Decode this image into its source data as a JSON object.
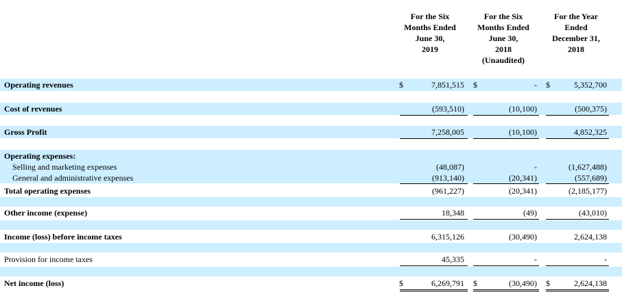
{
  "headers": {
    "col1": [
      "For the Six",
      "Months Ended",
      "June 30,",
      "2019"
    ],
    "col2": [
      "For the Six",
      "Months Ended",
      "June 30,",
      "2018",
      "(Unaudited)"
    ],
    "col3": [
      "For the Year",
      "Ended",
      "December 31,",
      "2018"
    ]
  },
  "currency_symbol": "$",
  "rows": {
    "operating_revenues": {
      "label": "Operating revenues",
      "c1": "7,851,515",
      "c2": "-",
      "c3": "5,352,700"
    },
    "cost_of_revenues": {
      "label": "Cost of revenues",
      "c1": "(593,510)",
      "c2": "(10,100)",
      "c3": "(500,375)"
    },
    "gross_profit": {
      "label": "Gross Profit",
      "c1": "7,258,005",
      "c2": "(10,100)",
      "c3": "4,852,325"
    },
    "operating_expenses": {
      "label": "Operating expenses:"
    },
    "selling_marketing": {
      "label": "Selling and marketing expenses",
      "c1": "(48,087)",
      "c2": "-",
      "c3": "(1,627,488)"
    },
    "general_admin": {
      "label": "General and administrative expenses",
      "c1": "(913,140)",
      "c2": "(20,341)",
      "c3": "(557,689)"
    },
    "total_operating": {
      "label": "Total operating expenses",
      "c1": "(961,227)",
      "c2": "(20,341)",
      "c3": "(2,185,177)"
    },
    "other_income": {
      "label": "Other income (expense)",
      "c1": "18,348",
      "c2": "(49)",
      "c3": "(43,010)"
    },
    "income_before_tax": {
      "label": "Income (loss) before income taxes",
      "c1": "6,315,126",
      "c2": "(30,490)",
      "c3": "2,624,138"
    },
    "provision_tax": {
      "label": "Provision for income taxes",
      "c1": "45,335",
      "c2": "-",
      "c3": "-"
    },
    "net_income": {
      "label": "Net income (loss)",
      "c1": "6,269,791",
      "c2": "(30,490)",
      "c3": "2,624,138"
    }
  }
}
